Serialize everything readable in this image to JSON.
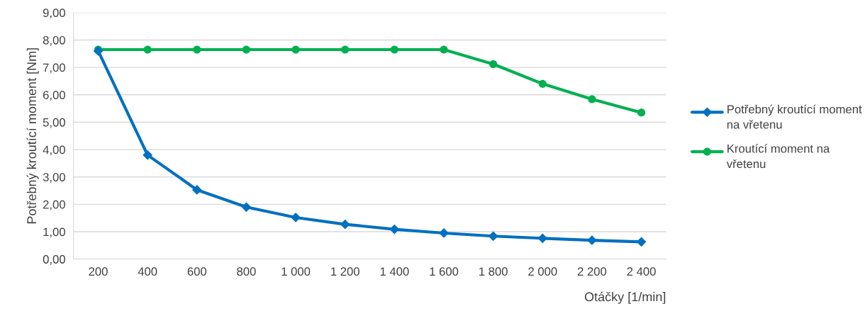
{
  "chart_data": {
    "type": "line",
    "ylabel": "Potřebný kroutící moment [Nm]",
    "xlabel": "Otáčky [1/min]",
    "categories": [
      "200",
      "400",
      "600",
      "800",
      "1 000",
      "1 200",
      "1 400",
      "1 600",
      "1 800",
      "2 000",
      "2 200",
      "2 400"
    ],
    "series": [
      {
        "name": "Potřebný kroutící moment na vřetenu",
        "color": "#0070c0",
        "marker": "diamond",
        "values": [
          7.6,
          3.8,
          2.53,
          1.9,
          1.52,
          1.27,
          1.09,
          0.95,
          0.84,
          0.76,
          0.69,
          0.63
        ]
      },
      {
        "name": "Kroutící moment na vřetenu",
        "color": "#00b050",
        "marker": "circle",
        "values": [
          7.65,
          7.65,
          7.65,
          7.65,
          7.65,
          7.65,
          7.65,
          7.65,
          7.12,
          6.4,
          5.84,
          5.35
        ]
      }
    ],
    "ylim": [
      0,
      9
    ],
    "yticks": [
      {
        "value": 0,
        "label": "0,00"
      },
      {
        "value": 1,
        "label": "1,00"
      },
      {
        "value": 2,
        "label": "2,00"
      },
      {
        "value": 3,
        "label": "3,00"
      },
      {
        "value": 4,
        "label": "4,00"
      },
      {
        "value": 5,
        "label": "5,00"
      },
      {
        "value": 6,
        "label": "6,00"
      },
      {
        "value": 7,
        "label": "7,00"
      },
      {
        "value": 8,
        "label": "8,00"
      },
      {
        "value": 9,
        "label": "9,00"
      }
    ],
    "grid": "y",
    "legend": "right",
    "line_style": "solid"
  }
}
